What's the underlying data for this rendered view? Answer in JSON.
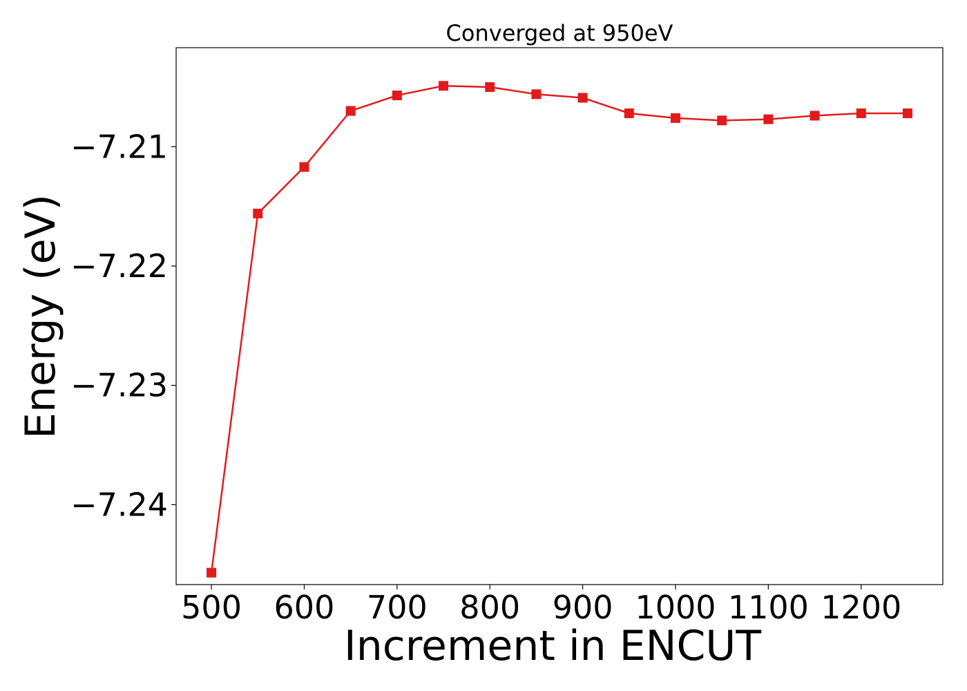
{
  "chart_data": {
    "type": "line",
    "title": "Converged at 950eV",
    "xlabel": "Increment in ENCUT",
    "ylabel": "Energy (eV)",
    "xlim": [
      462,
      1288
    ],
    "ylim": [
      -7.2467,
      -7.2017
    ],
    "x_ticks": [
      500,
      600,
      700,
      800,
      900,
      1000,
      1100,
      1200
    ],
    "x_tick_labels": [
      "500",
      "600",
      "700",
      "800",
      "900",
      "1000",
      "1100",
      "1200"
    ],
    "y_ticks": [
      -7.21,
      -7.22,
      -7.23,
      -7.24
    ],
    "y_tick_labels": [
      "−7.21",
      "−7.22",
      "−7.23",
      "−7.24"
    ],
    "grid": false,
    "series": [
      {
        "color": "#e31a1c",
        "marker": "square",
        "x": [
          500,
          550,
          600,
          650,
          700,
          750,
          800,
          850,
          900,
          950,
          1000,
          1050,
          1100,
          1150,
          1200,
          1250
        ],
        "y": [
          -7.2457,
          -7.2156,
          -7.2117,
          -7.207,
          -7.2057,
          -7.2049,
          -7.205,
          -7.2056,
          -7.2059,
          -7.2072,
          -7.2076,
          -7.2078,
          -7.2077,
          -7.2074,
          -7.2072,
          -7.2072
        ]
      }
    ]
  }
}
